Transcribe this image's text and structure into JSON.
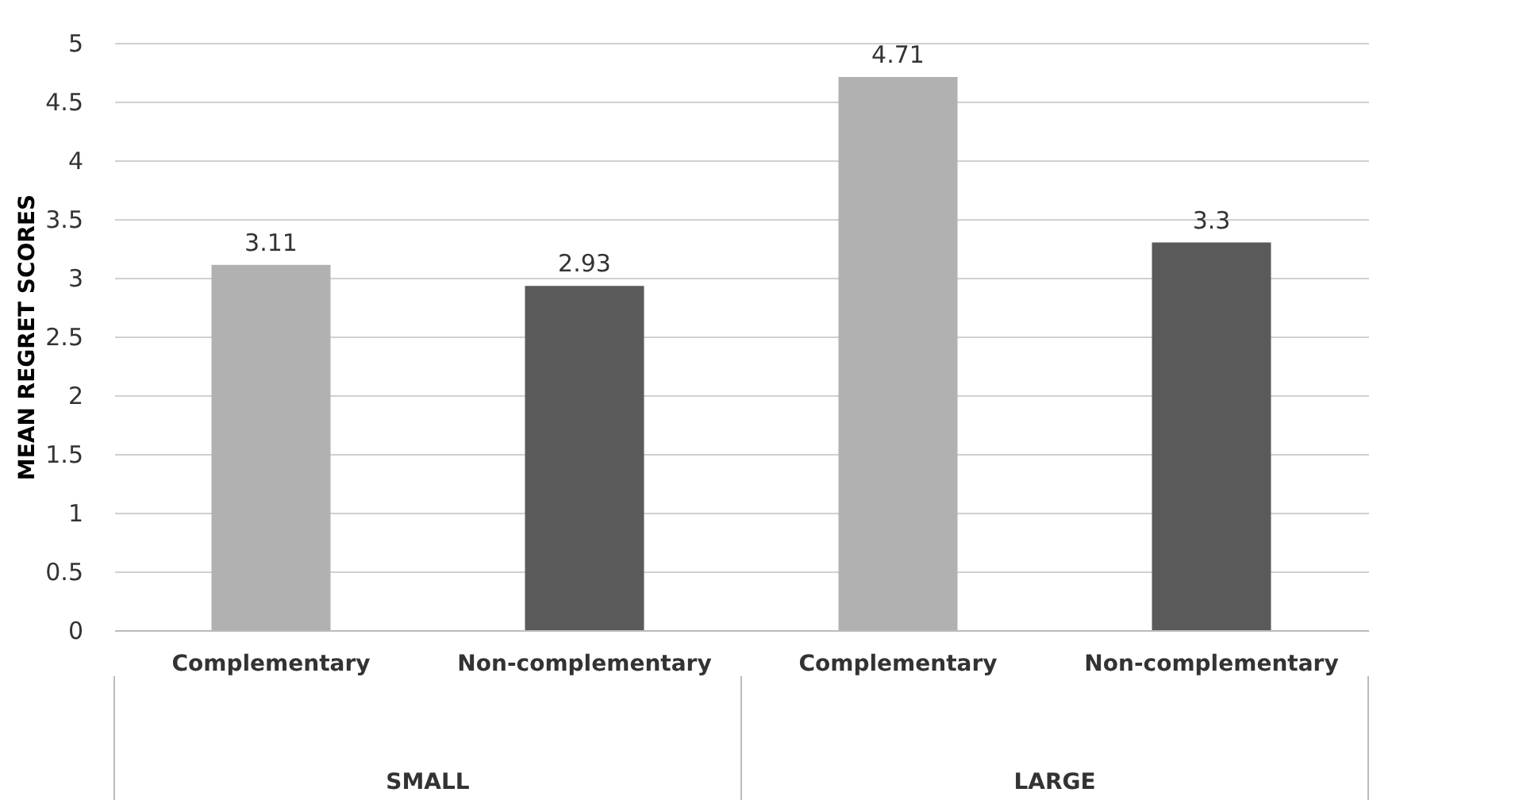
{
  "chart_data": {
    "type": "bar",
    "ylabel": "MEAN REGRET SCORES",
    "categories": [
      "Complementary",
      "Non-complementary",
      "Complementary",
      "Non-complementary"
    ],
    "values": [
      3.11,
      2.93,
      4.71,
      3.3
    ],
    "colors": [
      "#b0b1b0",
      "#5a5a5a",
      "#b0b1b0",
      "#5a5a5a"
    ],
    "ylim": [
      0,
      5
    ],
    "yticks": [
      0,
      0.5,
      1,
      1.5,
      2,
      2.5,
      3,
      3.5,
      4,
      4.5,
      5
    ],
    "grid": "y",
    "data_labels": true,
    "annotations": [
      "SMALL",
      "LARGE"
    ]
  }
}
